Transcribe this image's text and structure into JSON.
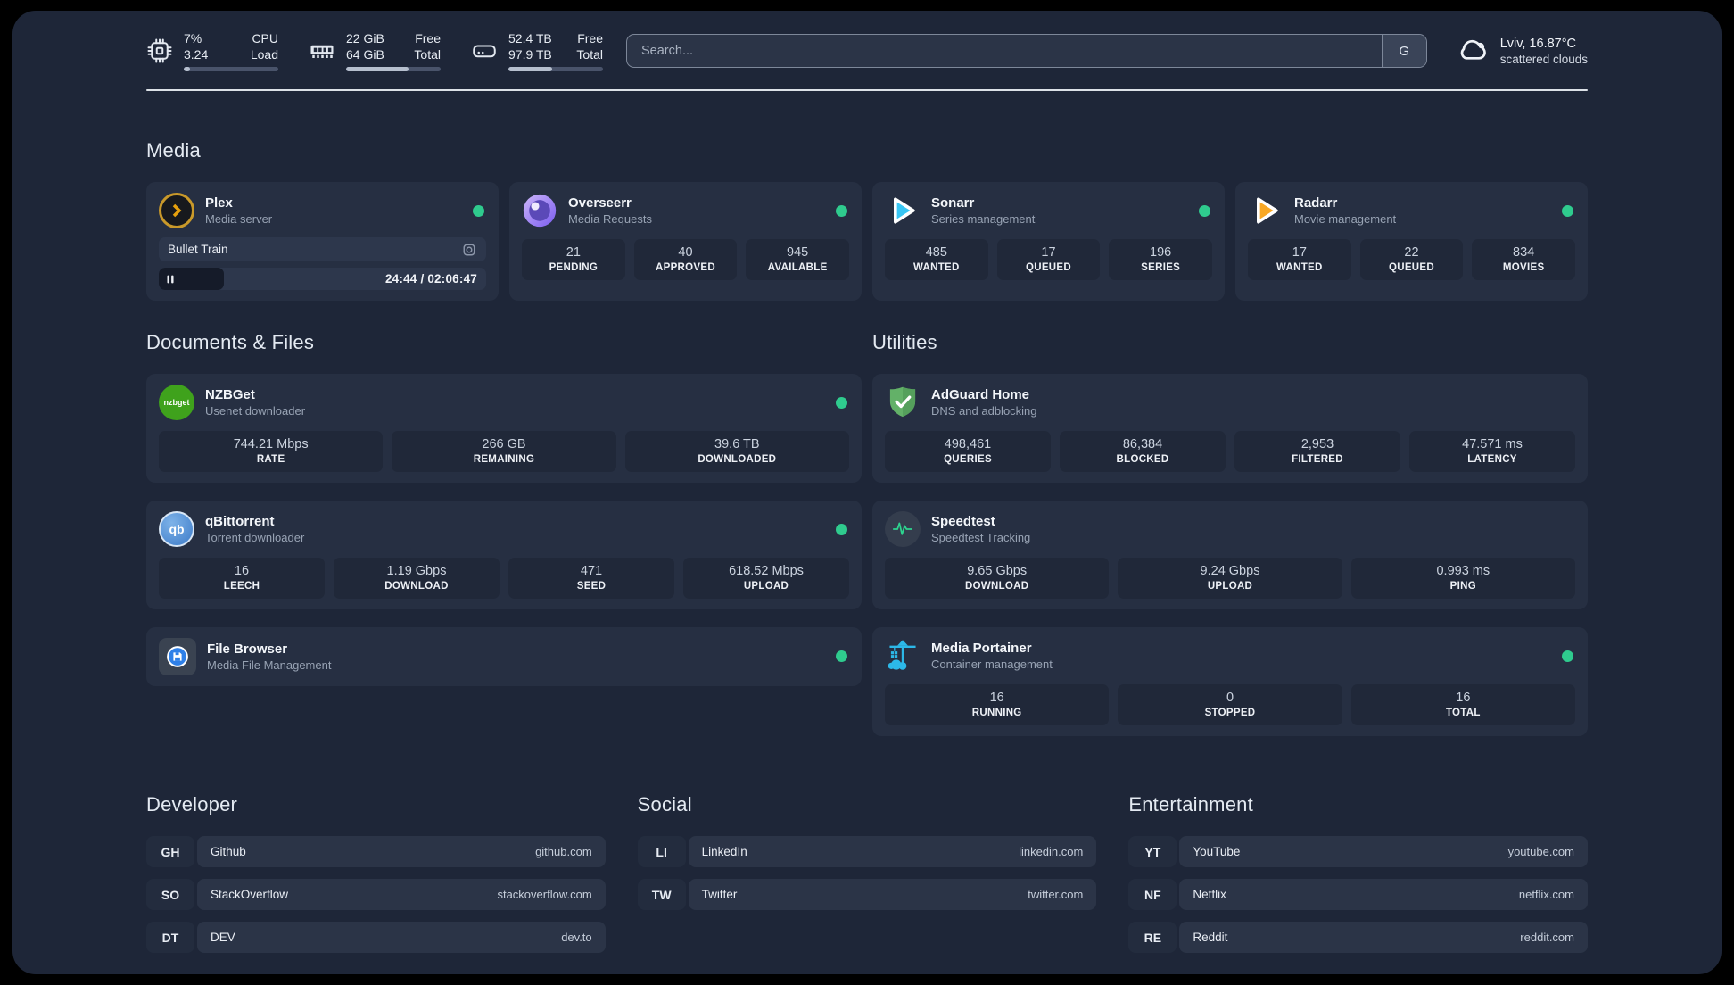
{
  "colors": {
    "status_online": "#2fcb8e",
    "plex_accent": "#e5a00d",
    "sonarr_accent": "#38c6f4",
    "radarr_accent": "#f9a825",
    "portainer_accent": "#2cb8e8",
    "adguard_accent": "#63b168",
    "speedtest_accent": "#2dd48f"
  },
  "header": {
    "cpu": {
      "values": [
        "7%",
        "3.24"
      ],
      "labels": [
        "CPU",
        "Load"
      ],
      "progress_pct": 7
    },
    "memory": {
      "values": [
        "22 GiB",
        "64 GiB"
      ],
      "labels": [
        "Free",
        "Total"
      ],
      "progress_pct": 66
    },
    "disk": {
      "values": [
        "52.4 TB",
        "97.9 TB"
      ],
      "labels": [
        "Free",
        "Total"
      ],
      "progress_pct": 46
    },
    "search": {
      "placeholder": "Search...",
      "provider_button": "G"
    },
    "weather": {
      "location_temp": "Lviv, 16.87°C",
      "condition": "scattered clouds"
    }
  },
  "media": {
    "title": "Media",
    "plex": {
      "name": "Plex",
      "description": "Media server",
      "now_playing": {
        "title": "Bullet Train",
        "time": "24:44 / 02:06:47",
        "progress_pct": 20
      }
    },
    "overseerr": {
      "name": "Overseerr",
      "description": "Media Requests",
      "stats": [
        {
          "value": "21",
          "label": "PENDING"
        },
        {
          "value": "40",
          "label": "APPROVED"
        },
        {
          "value": "945",
          "label": "AVAILABLE"
        }
      ]
    },
    "sonarr": {
      "name": "Sonarr",
      "description": "Series management",
      "stats": [
        {
          "value": "485",
          "label": "WANTED"
        },
        {
          "value": "17",
          "label": "QUEUED"
        },
        {
          "value": "196",
          "label": "SERIES"
        }
      ]
    },
    "radarr": {
      "name": "Radarr",
      "description": "Movie management",
      "stats": [
        {
          "value": "17",
          "label": "WANTED"
        },
        {
          "value": "22",
          "label": "QUEUED"
        },
        {
          "value": "834",
          "label": "MOVIES"
        }
      ]
    }
  },
  "documents": {
    "title": "Documents & Files",
    "nzbget": {
      "name": "NZBGet",
      "description": "Usenet downloader",
      "icon_label": "nzbget",
      "stats": [
        {
          "value": "744.21 Mbps",
          "label": "RATE"
        },
        {
          "value": "266 GB",
          "label": "REMAINING"
        },
        {
          "value": "39.6 TB",
          "label": "DOWNLOADED"
        }
      ]
    },
    "qbittorrent": {
      "name": "qBittorrent",
      "description": "Torrent downloader",
      "icon_label": "qb",
      "stats": [
        {
          "value": "16",
          "label": "LEECH"
        },
        {
          "value": "1.19 Gbps",
          "label": "DOWNLOAD"
        },
        {
          "value": "471",
          "label": "SEED"
        },
        {
          "value": "618.52 Mbps",
          "label": "UPLOAD"
        }
      ]
    },
    "filebrowser": {
      "name": "File Browser",
      "description": "Media File Management"
    }
  },
  "utilities": {
    "title": "Utilities",
    "adguard": {
      "name": "AdGuard Home",
      "description": "DNS and adblocking",
      "stats": [
        {
          "value": "498,461",
          "label": "QUERIES"
        },
        {
          "value": "86,384",
          "label": "BLOCKED"
        },
        {
          "value": "2,953",
          "label": "FILTERED"
        },
        {
          "value": "47.571 ms",
          "label": "LATENCY"
        }
      ]
    },
    "speedtest": {
      "name": "Speedtest",
      "description": "Speedtest Tracking",
      "stats": [
        {
          "value": "9.65 Gbps",
          "label": "DOWNLOAD"
        },
        {
          "value": "9.24 Gbps",
          "label": "UPLOAD"
        },
        {
          "value": "0.993 ms",
          "label": "PING"
        }
      ]
    },
    "portainer": {
      "name": "Media Portainer",
      "description": "Container management",
      "stats": [
        {
          "value": "16",
          "label": "RUNNING"
        },
        {
          "value": "0",
          "label": "STOPPED"
        },
        {
          "value": "16",
          "label": "TOTAL"
        }
      ]
    }
  },
  "bookmarks": [
    {
      "title": "Developer",
      "items": [
        {
          "abbr": "GH",
          "name": "Github",
          "href": "github.com"
        },
        {
          "abbr": "SO",
          "name": "StackOverflow",
          "href": "stackoverflow.com"
        },
        {
          "abbr": "DT",
          "name": "DEV",
          "href": "dev.to"
        }
      ]
    },
    {
      "title": "Social",
      "items": [
        {
          "abbr": "LI",
          "name": "LinkedIn",
          "href": "linkedin.com"
        },
        {
          "abbr": "TW",
          "name": "Twitter",
          "href": "twitter.com"
        }
      ]
    },
    {
      "title": "Entertainment",
      "items": [
        {
          "abbr": "YT",
          "name": "YouTube",
          "href": "youtube.com"
        },
        {
          "abbr": "NF",
          "name": "Netflix",
          "href": "netflix.com"
        },
        {
          "abbr": "RE",
          "name": "Reddit",
          "href": "reddit.com"
        }
      ]
    }
  ]
}
